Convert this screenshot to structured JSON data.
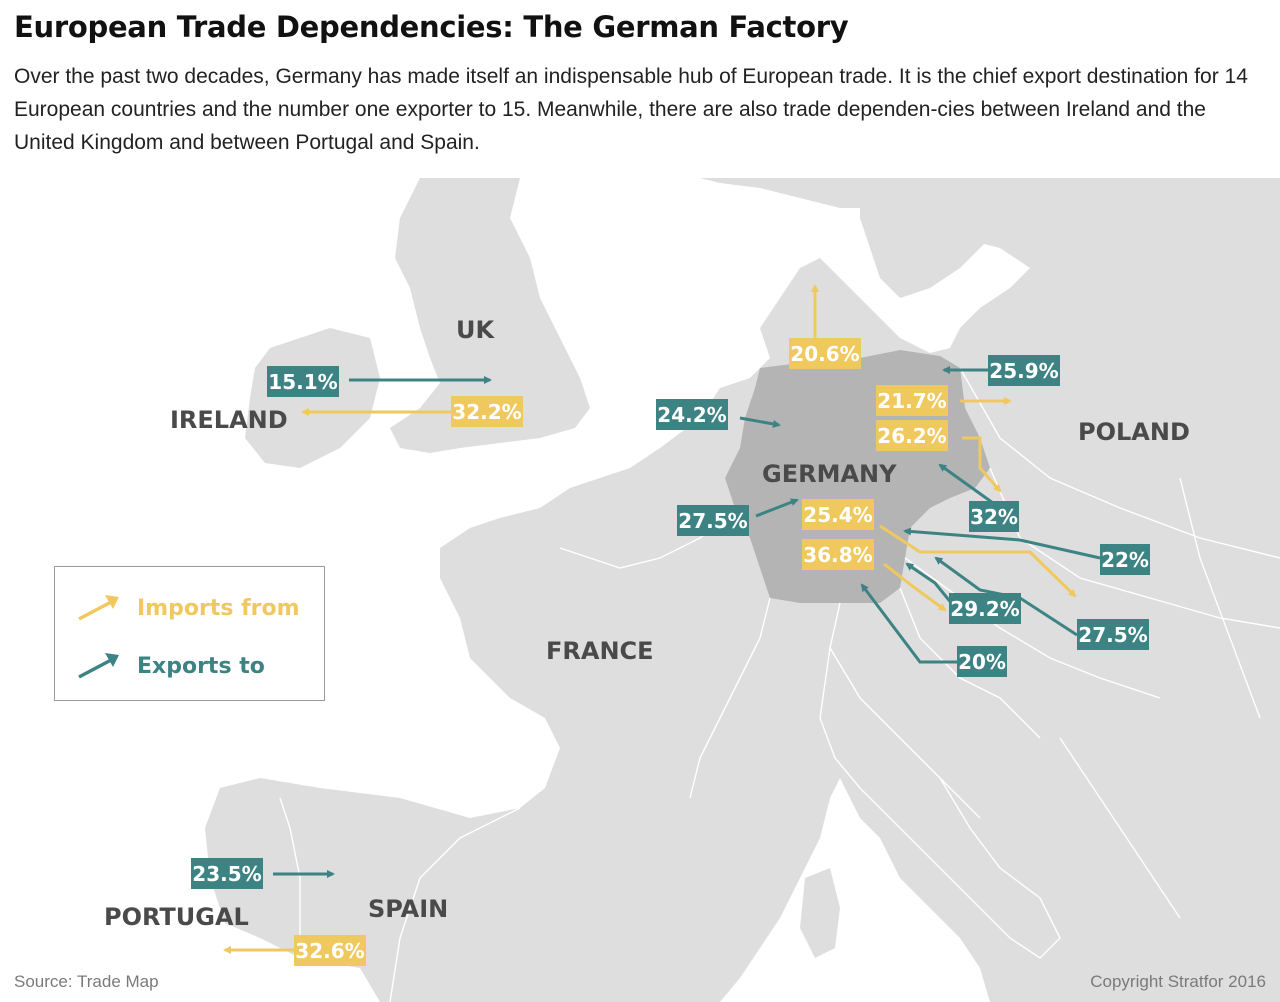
{
  "header": {
    "title": "European Trade Dependencies: The German Factory",
    "subtitle": "Over the past two decades, Germany has made itself an indispensable hub of European trade. It is the chief export destination for 14 European countries and the number one exporter to 15. Meanwhile, there are also trade dependen-cies between Ireland and the United Kingdom and between Portugal and Spain."
  },
  "colors": {
    "imports": "#f0c95e",
    "exports": "#3e8384",
    "land": "#dedede",
    "germany": "#b4b4b4",
    "water": "#ffffff"
  },
  "countries": {
    "uk": "UK",
    "ireland": "IRELAND",
    "germany": "GERMANY",
    "poland": "POLAND",
    "france": "FRANCE",
    "spain": "SPAIN",
    "portugal": "PORTUGAL"
  },
  "flows": [
    {
      "id": "ireland-uk-exports",
      "type": "exports",
      "value": "15.1%"
    },
    {
      "id": "uk-ireland-imports",
      "type": "imports",
      "value": "32.2%"
    },
    {
      "id": "denmark-imports",
      "type": "imports",
      "value": "20.6%"
    },
    {
      "id": "poland-exports",
      "type": "exports",
      "value": "25.9%"
    },
    {
      "id": "poland-imports",
      "type": "imports",
      "value": "21.7%"
    },
    {
      "id": "netherlands-exports",
      "type": "exports",
      "value": "24.2%"
    },
    {
      "id": "czech-imports",
      "type": "imports",
      "value": "26.2%"
    },
    {
      "id": "czech-exports",
      "type": "exports",
      "value": "32%"
    },
    {
      "id": "france-west-exports",
      "type": "exports",
      "value": "27.5%"
    },
    {
      "id": "austria-imports",
      "type": "imports",
      "value": "25.4%"
    },
    {
      "id": "hungary-exports",
      "type": "exports",
      "value": "22%"
    },
    {
      "id": "swiss-imports",
      "type": "imports",
      "value": "36.8%"
    },
    {
      "id": "austria-exports",
      "type": "exports",
      "value": "29.2%"
    },
    {
      "id": "hungary-imports-exports",
      "type": "exports",
      "value": "27.5%"
    },
    {
      "id": "slovenia-exports",
      "type": "exports",
      "value": "20%"
    },
    {
      "id": "portugal-spain-exports",
      "type": "exports",
      "value": "23.5%"
    },
    {
      "id": "spain-portugal-imports",
      "type": "imports",
      "value": "32.6%"
    }
  ],
  "legend": {
    "imports_label": "Imports from",
    "exports_label": "Exports to"
  },
  "footer": {
    "source": "Source: Trade Map",
    "copyright": "Copyright Stratfor 2016"
  }
}
